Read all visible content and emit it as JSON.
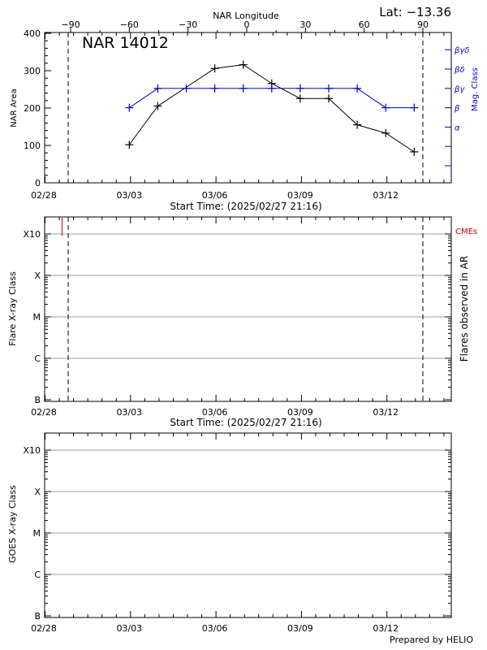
{
  "header": {
    "lat_text": "Lat: −13.36",
    "footer_text": "Prepared by HELIO"
  },
  "colors": {
    "axis": "#000000",
    "grid": "#a0a0a0",
    "mag_class": "#0000cc",
    "cme": "#cc0000"
  },
  "chart_data": [
    {
      "type": "line",
      "region_label": "NAR 14012",
      "top_axis": {
        "label": "NAR Longitude",
        "ticks": [
          -90,
          -60,
          -30,
          0,
          30,
          60,
          90
        ],
        "tick_labels": [
          "−90",
          "−60",
          "−30",
          "0",
          "30",
          "60",
          "90"
        ]
      },
      "x_ticks": [
        "02/28",
        "03/03",
        "03/06",
        "03/09",
        "03/12"
      ],
      "xlabel": "Start Time: (2025/02/27 21:16)",
      "ylabel": "NAR Area",
      "ylim": [
        0,
        400
      ],
      "y_ticks": [
        0,
        100,
        200,
        300,
        400
      ],
      "right_axis": {
        "label": "Mag. Class",
        "classes": [
          "",
          "",
          "α",
          "β",
          "βγ",
          "βδ",
          "βγδ"
        ]
      },
      "vlines_longitude": [
        -90,
        90
      ],
      "series": [
        {
          "x": [
            "03/03",
            "03/04",
            "03/05",
            "03/06",
            "03/07",
            "03/08",
            "03/09",
            "03/10",
            "03/11",
            "03/12",
            "03/13"
          ],
          "values": [
            97,
            200,
            null,
            300,
            310,
            260,
            220,
            220,
            150,
            128,
            78
          ]
        },
        {
          "x": [
            "03/03",
            "03/04",
            "03/05",
            "03/06",
            "03/07",
            "03/08",
            "03/09",
            "03/10",
            "03/11",
            "03/12",
            "03/13"
          ],
          "values": [
            "β",
            "βγ",
            "βγ",
            "βγ",
            "βγ",
            "βγ",
            "βγ",
            "βγ",
            "βγ",
            "β",
            "β"
          ]
        }
      ]
    },
    {
      "type": "scatter",
      "x_ticks": [
        "02/28",
        "03/03",
        "03/06",
        "03/09",
        "03/12"
      ],
      "xlabel": "Start Time: (2025/02/27 21:16)",
      "ylabel": "Flare X-ray Class",
      "y_classes": [
        "B",
        "C",
        "M",
        "X",
        "X10"
      ],
      "right_axis": {
        "label": "Flares observed in AR",
        "legend": "CMEs"
      },
      "cme_times": [
        "2025/02/28 15:00"
      ],
      "vlines_longitude": [
        -90,
        90
      ],
      "grid": true,
      "series": []
    },
    {
      "type": "scatter",
      "x_ticks": [
        "02/28",
        "03/03",
        "03/06",
        "03/09",
        "03/12"
      ],
      "ylabel": "GOES X-ray Class",
      "y_classes": [
        "B",
        "C",
        "M",
        "X",
        "X10"
      ],
      "grid": true,
      "series": []
    }
  ]
}
